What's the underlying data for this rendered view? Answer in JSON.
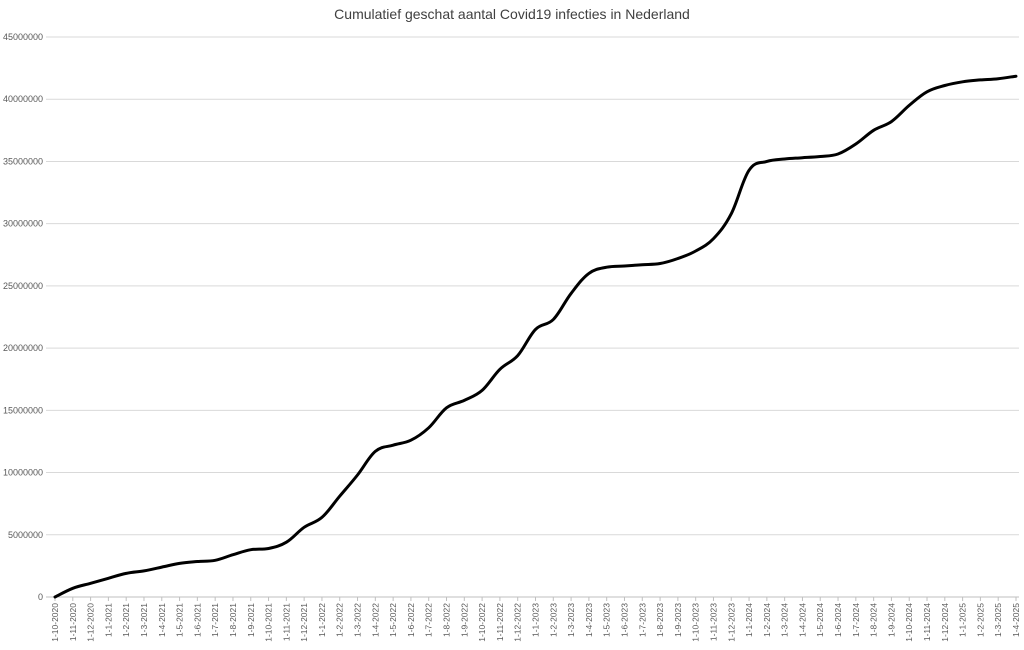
{
  "chart_data": {
    "type": "line",
    "title": "Cumulatief geschat aantal Covid19 infecties in Nederland",
    "xlabel": "",
    "ylabel": "",
    "ylim": [
      0,
      45000000
    ],
    "yticks": [
      0,
      5000000,
      10000000,
      15000000,
      20000000,
      25000000,
      30000000,
      35000000,
      40000000,
      45000000
    ],
    "grid": true,
    "legend": "none",
    "line_color": "#000000",
    "grid_color": "#d9d9d9",
    "x": [
      "1-10-2020",
      "1-11-2020",
      "1-12-2020",
      "1-1-2021",
      "1-2-2021",
      "1-3-2021",
      "1-4-2021",
      "1-5-2021",
      "1-6-2021",
      "1-7-2021",
      "1-8-2021",
      "1-9-2021",
      "1-10-2021",
      "1-11-2021",
      "1-12-2021",
      "1-1-2022",
      "1-2-2022",
      "1-3-2022",
      "1-4-2022",
      "1-5-2022",
      "1-6-2022",
      "1-7-2022",
      "1-8-2022",
      "1-9-2022",
      "1-10-2022",
      "1-11-2022",
      "1-12-2022",
      "1-1-2023",
      "1-2-2023",
      "1-3-2023",
      "1-4-2023",
      "1-5-2023",
      "1-6-2023",
      "1-7-2023",
      "1-8-2023",
      "1-9-2023",
      "1-10-2023",
      "1-11-2023",
      "1-12-2023",
      "1-1-2024",
      "1-2-2024",
      "1-3-2024",
      "1-4-2024",
      "1-5-2024",
      "1-6-2024",
      "1-7-2024",
      "1-8-2024",
      "1-9-2024",
      "1-10-2024",
      "1-11-2024",
      "1-12-2024",
      "1-1-2025",
      "1-2-2025",
      "1-3-2025",
      "1-4-2025"
    ],
    "series": [
      {
        "values": [
          0,
          700000,
          1100000,
          1500000,
          1900000,
          2100000,
          2400000,
          2700000,
          2850000,
          2950000,
          3400000,
          3800000,
          3900000,
          4400000,
          5600000,
          6400000,
          8100000,
          9800000,
          11700000,
          12200000,
          12600000,
          13600000,
          15200000,
          15800000,
          16600000,
          18300000,
          19400000,
          21500000,
          22300000,
          24400000,
          26000000,
          26500000,
          26600000,
          26700000,
          26800000,
          27200000,
          27800000,
          28800000,
          30800000,
          34300000,
          35000000,
          35200000,
          35300000,
          35400000,
          35600000,
          36400000,
          37500000,
          38200000,
          39500000,
          40600000,
          41100000,
          41400000,
          41550000,
          41650000,
          41850000
        ]
      }
    ]
  }
}
